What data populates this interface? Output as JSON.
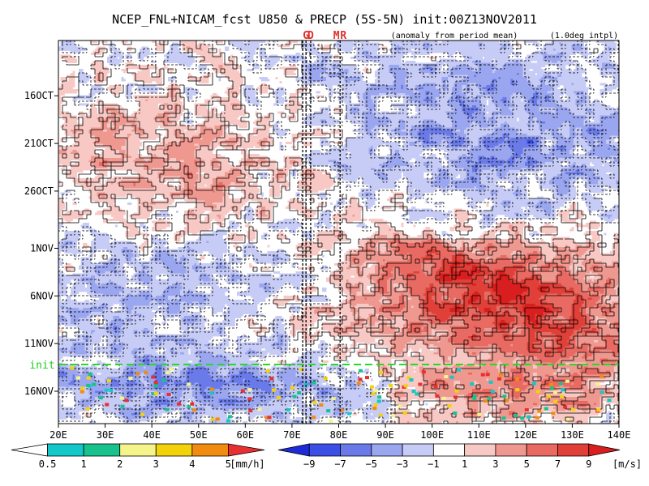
{
  "chart_data": {
    "type": "heatmap",
    "title": "NCEP_FNL+NICAM_fcst U850 & PRECP (5S-5N) init:00Z13NOV2011",
    "subtitle_left": "(anomaly from period mean)",
    "subtitle_right": "(1.0deg intpl)",
    "x_axis": {
      "range": [
        20,
        140
      ],
      "ticks": [
        20,
        30,
        40,
        50,
        60,
        70,
        80,
        90,
        100,
        110,
        120,
        130,
        140
      ],
      "tick_labels": [
        "20E",
        "30E",
        "40E",
        "50E",
        "60E",
        "70E",
        "80E",
        "90E",
        "100E",
        "110E",
        "120E",
        "130E",
        "140E"
      ]
    },
    "y_axis": {
      "range_day_index": [
        0,
        35
      ],
      "start_date": "2011-10-12",
      "ticks": [
        4,
        9,
        14,
        20,
        25,
        30,
        35
      ],
      "tick_labels": [
        "16OCT",
        "21OCT",
        "26OCT",
        "1NOV",
        "6NOV",
        "11NOV",
        "16NOV"
      ],
      "direction": "time increases downward"
    },
    "markers": [
      {
        "label": "G",
        "lon": 73
      },
      {
        "label": "D",
        "lon": 74
      },
      {
        "label": "M",
        "lon": 79.5
      },
      {
        "label": "R",
        "lon": 81
      }
    ],
    "vertical_lines_lon": [
      72.3,
      73,
      74,
      80.3
    ],
    "init_line": {
      "label": "init",
      "day": 32.2
    },
    "u850_levels": [
      -9,
      -7,
      -5,
      -3,
      -1,
      1,
      3,
      5,
      7,
      9
    ],
    "u850_colors": [
      "#1e2ad8",
      "#3b4fe6",
      "#6a7ae8",
      "#9aa6ef",
      "#c6ccf6",
      "#ffffff",
      "#f8c8c4",
      "#ef9890",
      "#e86a62",
      "#e04038",
      "#d81e1e"
    ],
    "u850_anomaly_features": [
      {
        "lon_range": [
          85,
          140
        ],
        "day_range": [
          0,
          16
        ],
        "sign": "negative",
        "max_abs": 7
      },
      {
        "lon_range": [
          20,
          75
        ],
        "day_range": [
          6,
          16
        ],
        "sign": "positive",
        "max_abs": 5
      },
      {
        "lon_range": [
          80,
          140
        ],
        "day_range": [
          19,
          32
        ],
        "sign": "positive",
        "max_abs": 9
      },
      {
        "lon_range": [
          20,
          75
        ],
        "day_range": [
          20,
          31
        ],
        "sign": "negative",
        "max_abs": 5
      },
      {
        "lon_range": [
          20,
          90
        ],
        "day_range": [
          32,
          38
        ],
        "sign": "negative",
        "max_abs": 7
      },
      {
        "lon_range": [
          95,
          140
        ],
        "day_range": [
          32,
          38
        ],
        "sign": "positive",
        "max_abs": 7
      }
    ],
    "precip_levels": [
      0.5,
      1,
      2,
      3,
      4,
      5
    ],
    "precip_colors": [
      "#ffffff",
      "#12c8c8",
      "#17c28c",
      "#f4f48a",
      "#f4d20a",
      "#f28c10",
      "#e83030"
    ],
    "precip_unit": "[mm/h]",
    "u850_unit": "[m/s]"
  },
  "colorbars": {
    "precip": {
      "labels": [
        "0.5",
        "1",
        "2",
        "3",
        "4",
        "5"
      ],
      "unit": "[mm/h]"
    },
    "u850": {
      "labels": [
        "−9",
        "−7",
        "−5",
        "−3",
        "−1",
        "1",
        "3",
        "5",
        "7",
        "9"
      ],
      "unit": "[m/s]"
    }
  }
}
